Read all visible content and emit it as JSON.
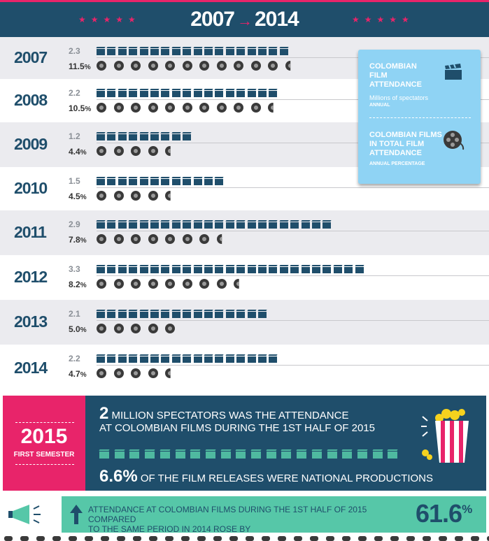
{
  "header": {
    "from": "2007",
    "to": "2014",
    "arrow": "→"
  },
  "colors": {
    "navy": "#1f4e6b",
    "pink": "#e8246a",
    "light_blue": "#8fd3f4",
    "teal": "#56c7a8",
    "row_gray": "#ebebef"
  },
  "legend": {
    "attendance_title": "COLOMBIAN FILM ATTENDANCE",
    "attendance_sub": "Millions of spectators",
    "attendance_period": "ANNUAL",
    "share_title": "COLOMBIAN FILMS IN TOTAL FILM ATTENDANCE",
    "share_period": "ANNUAL PERCENTAGE",
    "clapper_icon": "clapperboard-icon",
    "reel_icon": "film-reel-icon"
  },
  "chart_data": {
    "type": "table",
    "rows": [
      {
        "year": "2007",
        "attendance": "2.3",
        "share": "11.5"
      },
      {
        "year": "2008",
        "attendance": "2.2",
        "share": "10.5"
      },
      {
        "year": "2009",
        "attendance": "1.2",
        "share": "4.4"
      },
      {
        "year": "2010",
        "attendance": "1.5",
        "share": "4.5"
      },
      {
        "year": "2011",
        "attendance": "2.9",
        "share": "7.8"
      },
      {
        "year": "2012",
        "attendance": "3.3",
        "share": "8.2"
      },
      {
        "year": "2013",
        "attendance": "2.1",
        "share": "5.0"
      },
      {
        "year": "2014",
        "attendance": "2.2",
        "share": "4.7"
      }
    ],
    "percent_sign": "%"
  },
  "panel_2015": {
    "year": "2015",
    "semester": "FIRST SEMESTER",
    "spectators_number": "2",
    "spectators_line1": "MILLION SPECTATORS WAS THE ATTENDANCE",
    "spectators_line2": "AT COLOMBIAN FILMS DURING THE 1ST HALF OF 2015",
    "attendance_value": 2.0,
    "releases_pct": "6.6%",
    "releases_text": "OF THE FILM RELEASES WERE NATIONAL PRODUCTIONS"
  },
  "bottom": {
    "line1": "ATTENDANCE AT COLOMBIAN FILMS  DURING THE 1ST HALF OF 2015 COMPARED",
    "line2": "TO THE SAME PERIOD IN 2014 ROSE BY",
    "value": "61.6",
    "pct": "%"
  }
}
